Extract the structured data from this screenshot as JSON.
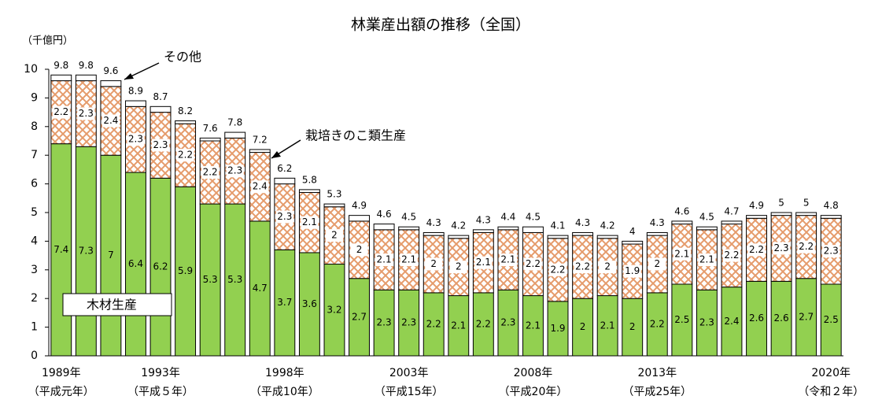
{
  "chart_data": {
    "type": "stacked_bar",
    "title": "林業産出額の推移（全国）",
    "y_unit": "（千億円）",
    "categories": [
      "1989年",
      null,
      null,
      null,
      "1993年",
      null,
      null,
      null,
      null,
      "1998年",
      null,
      null,
      null,
      null,
      "2003年",
      null,
      null,
      null,
      null,
      "2008年",
      null,
      null,
      null,
      null,
      "2013年",
      null,
      null,
      null,
      null,
      null,
      null,
      "2020年"
    ],
    "category_sublabels": [
      "（平成元年）",
      null,
      null,
      null,
      "（平成５年）",
      null,
      null,
      null,
      null,
      "（平成10年）",
      null,
      null,
      null,
      null,
      "（平成15年）",
      null,
      null,
      null,
      null,
      "（平成20年）",
      null,
      null,
      null,
      null,
      "（平成25年）",
      null,
      null,
      null,
      null,
      null,
      null,
      "（令和２年）"
    ],
    "series": [
      {
        "name": "木材生産",
        "color": "#92d050",
        "values": [
          7.4,
          7.3,
          7.0,
          6.4,
          6.2,
          5.9,
          5.3,
          5.3,
          4.7,
          3.7,
          3.6,
          3.2,
          2.7,
          2.3,
          2.3,
          2.2,
          2.1,
          2.2,
          2.3,
          2.1,
          1.9,
          2.0,
          2.1,
          2.0,
          2.2,
          2.5,
          2.3,
          2.4,
          2.6,
          2.6,
          2.7,
          2.5
        ]
      },
      {
        "name": "栽培きのこ類生産",
        "color": "#e59b6b",
        "pattern": "crosshatch",
        "values": [
          2.2,
          2.3,
          2.4,
          2.3,
          2.3,
          2.2,
          2.2,
          2.3,
          2.4,
          2.3,
          2.1,
          2.0,
          2.0,
          2.1,
          2.1,
          2.0,
          2.0,
          2.1,
          2.1,
          2.2,
          2.2,
          2.2,
          2.0,
          1.9,
          2.0,
          2.1,
          2.1,
          2.2,
          2.2,
          2.3,
          2.2,
          2.3
        ]
      },
      {
        "name": "その他",
        "color": "#ffffff",
        "values": [
          0.2,
          0.2,
          0.2,
          0.2,
          0.2,
          0.1,
          0.1,
          0.2,
          0.1,
          0.2,
          0.1,
          0.1,
          0.2,
          0.2,
          0.1,
          0.1,
          0.1,
          0.1,
          0.1,
          0.2,
          0.1,
          0.1,
          0.1,
          0.1,
          0.1,
          0.1,
          0.1,
          0.1,
          0.1,
          0.1,
          0.1,
          0.1
        ]
      }
    ],
    "totals": [
      9.8,
      9.8,
      9.6,
      8.9,
      8.7,
      8.2,
      7.6,
      7.8,
      7.2,
      6.2,
      5.8,
      5.3,
      4.9,
      4.6,
      4.5,
      4.3,
      4.2,
      4.3,
      4.4,
      4.5,
      4.1,
      4.3,
      4.2,
      4.0,
      4.3,
      4.6,
      4.5,
      4.7,
      4.9,
      5.0,
      5.0,
      4.8
    ],
    "ylim": [
      0,
      10
    ],
    "yticks": [
      0,
      1,
      2,
      3,
      4,
      5,
      6,
      7,
      8,
      9,
      10
    ]
  }
}
